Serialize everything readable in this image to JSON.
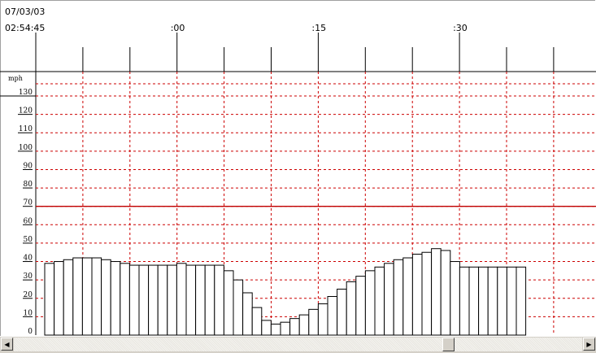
{
  "header": {
    "date": "07/03/03",
    "start_time": "02:54:45"
  },
  "chart_data": {
    "type": "bar",
    "unit_label": "mph",
    "time_labels": [
      ":00",
      ":15",
      ":30"
    ],
    "y_ticks": [
      0,
      10,
      20,
      30,
      40,
      50,
      60,
      70,
      80,
      90,
      100,
      110,
      120,
      130
    ],
    "ylim": [
      0,
      140
    ],
    "grid": true,
    "reference_line": 70,
    "values": [
      39,
      40,
      41,
      42,
      42,
      42,
      41,
      40,
      39,
      38,
      38,
      38,
      38,
      38,
      39,
      38,
      38,
      38,
      38,
      35,
      30,
      23,
      15,
      8,
      6,
      7,
      9,
      11,
      14,
      17,
      21,
      25,
      29,
      32,
      35,
      37,
      39,
      41,
      42,
      44,
      45,
      47,
      46,
      40,
      37,
      37,
      37,
      37,
      37,
      37,
      37
    ]
  },
  "colors": {
    "grid": "#cc0000",
    "reference_line": "#c00000",
    "bar_fill": "#ffffff",
    "bar_stroke": "#000000",
    "axis": "#000000"
  },
  "scrollbar": {
    "left_arrow_icon": "arrow-left-icon",
    "right_arrow_icon": "arrow-right-icon",
    "thumb_position": 0.77
  }
}
